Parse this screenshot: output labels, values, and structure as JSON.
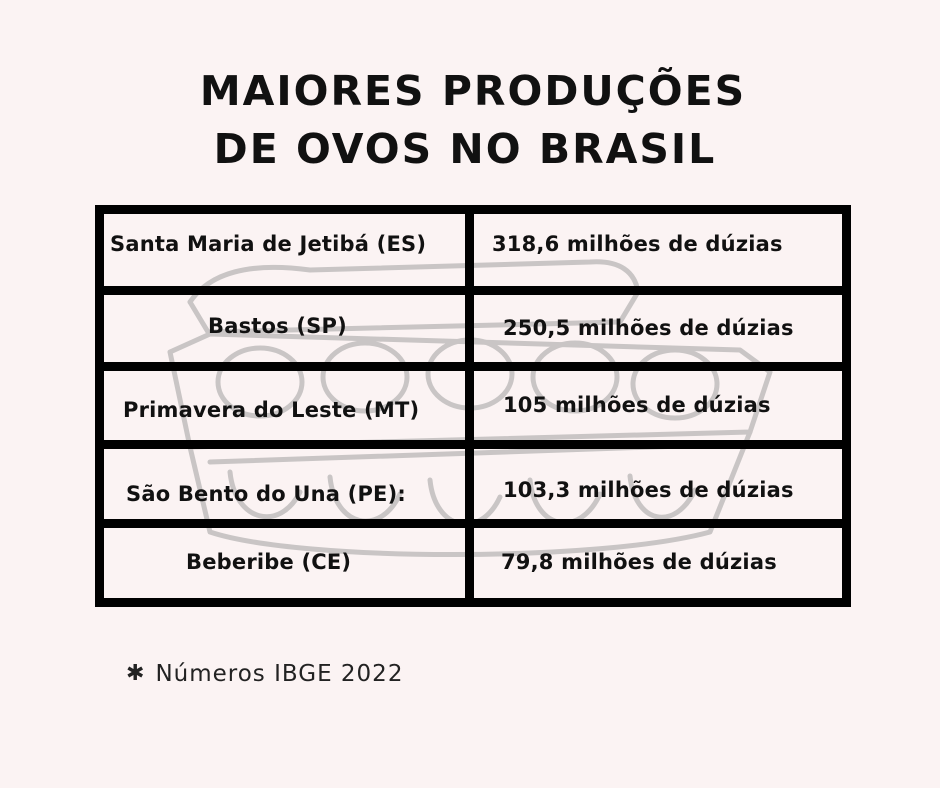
{
  "title": {
    "line1": "MAIORES PRODUÇÕES",
    "line2": "DE OVOS NO BRASIL"
  },
  "table": {
    "rows": [
      {
        "city": "Santa Maria de Jetibá (ES)",
        "value": "318,6 milhões de dúzias"
      },
      {
        "city": "Bastos (SP)",
        "value": "250,5 milhões de dúzias"
      },
      {
        "city": "Primavera do Leste (MT)",
        "value": "105 milhões de dúzias"
      },
      {
        "city": "São Bento do Una (PE):",
        "value": "103,3 milhões de dúzias"
      },
      {
        "city": "Beberibe (CE)",
        "value": "79,8 milhões de dúzias"
      }
    ]
  },
  "footnote": {
    "icon": "asterisk-icon",
    "text": "Números IBGE 2022"
  },
  "background": {
    "illustration": "egg-carton-illustration",
    "color": "#fbf3f3"
  }
}
